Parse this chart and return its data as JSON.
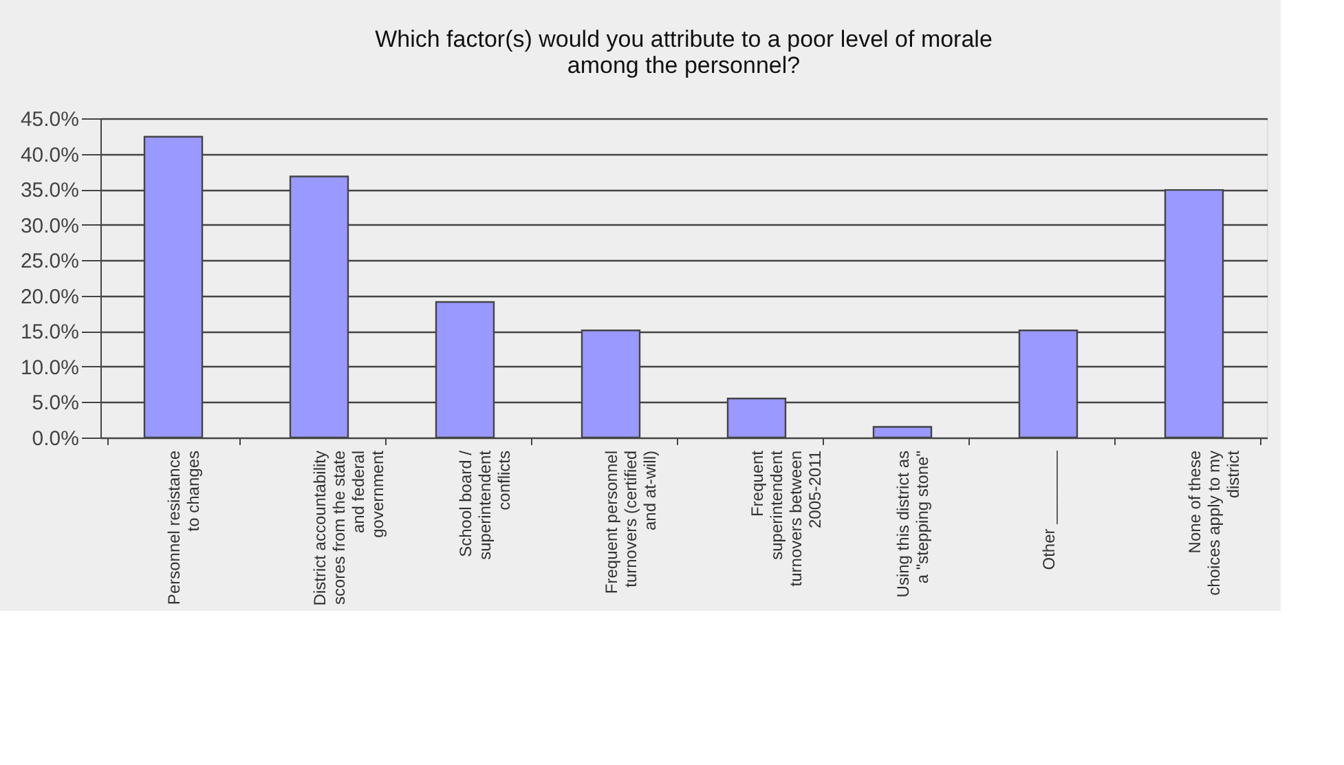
{
  "chart_data": {
    "type": "bar",
    "title": [
      "Which factor(s) would you attribute to a poor level of morale",
      "among the personnel?"
    ],
    "categories": [
      "Personnel resistance\nto changes",
      "District accountability\nscores from the state\nand federal\ngovernment",
      "School board /\nsuperintendent\nconflicts",
      "Frequent personnel\nturnovers (certified\nand at-will)",
      "Frequent\nsuperintendent\nturnovers between\n2005-2011",
      "Using this district as\na \"stepping stone\"",
      "Other ________",
      "None of these\nchoices apply to my\ndistrict"
    ],
    "values": [
      42.4,
      36.8,
      19.1,
      15.1,
      5.5,
      1.5,
      15.1,
      34.9
    ],
    "color": "#9999ff",
    "ylim": [
      0,
      45
    ],
    "yticks": [
      {
        "value": 0,
        "label": "0.0%"
      },
      {
        "value": 5,
        "label": "5.0%"
      },
      {
        "value": 10,
        "label": "10.0%"
      },
      {
        "value": 15,
        "label": "15.0%"
      },
      {
        "value": 20,
        "label": "20.0%"
      },
      {
        "value": 25,
        "label": "25.0%"
      },
      {
        "value": 30,
        "label": "30.0%"
      },
      {
        "value": 35,
        "label": "35.0%"
      },
      {
        "value": 40,
        "label": "40.0%"
      },
      {
        "value": 45,
        "label": "45.0%"
      }
    ],
    "grid": "y"
  }
}
